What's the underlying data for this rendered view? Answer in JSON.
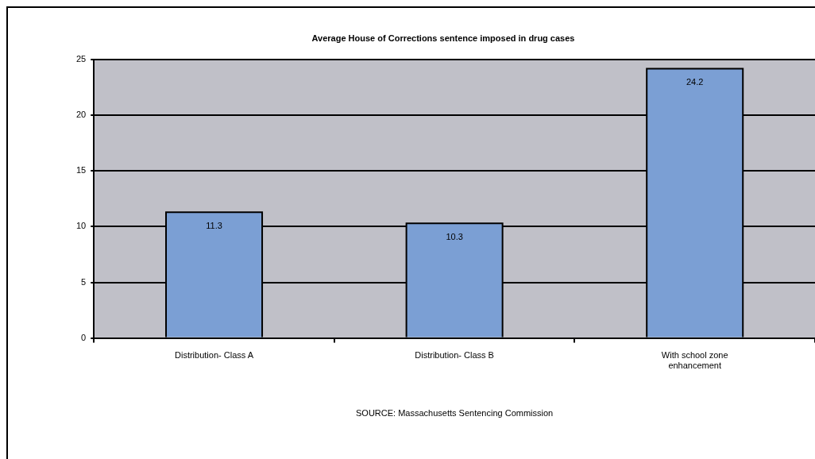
{
  "chart_data": {
    "type": "bar",
    "title": "Average House of Corrections sentence imposed in drug cases",
    "categories": [
      "Distribution- Class A",
      "Distribution- Class B",
      "With school zone enhancement"
    ],
    "values": [
      11.3,
      10.3,
      24.2
    ],
    "color": "#7b9fd4",
    "ylim": [
      0,
      25
    ],
    "yticks": [
      0,
      5,
      10,
      15,
      20,
      25
    ],
    "grid": "y",
    "data_labels": true,
    "annotations": [
      "SOURCE: Massachusetts Sentencing Commission"
    ]
  }
}
